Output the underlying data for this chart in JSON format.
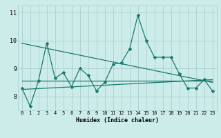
{
  "xlabel": "Humidex (Indice chaleur)",
  "bg_color": "#ccecea",
  "grid_color": "#b0d4d2",
  "line_color": "#1a7a6e",
  "xlim": [
    -0.5,
    23.5
  ],
  "ylim": [
    7.5,
    11.25
  ],
  "yticks": [
    8,
    9,
    10,
    11
  ],
  "xticks": [
    0,
    1,
    2,
    3,
    4,
    5,
    6,
    7,
    8,
    9,
    10,
    11,
    12,
    13,
    14,
    15,
    16,
    17,
    18,
    19,
    20,
    21,
    22,
    23
  ],
  "main_x": [
    0,
    1,
    2,
    3,
    4,
    5,
    6,
    7,
    8,
    9,
    10,
    11,
    12,
    13,
    14,
    15,
    16,
    17,
    18,
    19,
    20,
    21,
    22,
    23
  ],
  "main_y": [
    8.3,
    7.65,
    8.55,
    9.9,
    8.65,
    8.85,
    8.35,
    9.0,
    8.75,
    8.2,
    8.5,
    9.15,
    9.2,
    9.7,
    10.9,
    10.0,
    9.4,
    9.4,
    9.4,
    8.8,
    8.3,
    8.3,
    8.6,
    8.2
  ],
  "trend1_x": [
    0,
    23
  ],
  "trend1_y": [
    8.25,
    8.6
  ],
  "trend2_x": [
    0,
    23
  ],
  "trend2_y": [
    9.9,
    8.5
  ],
  "trend3_x": [
    0,
    23
  ],
  "trend3_y": [
    8.55,
    8.55
  ],
  "xlabel_fontsize": 6,
  "tick_fontsize": 5,
  "ytick_fontsize": 6,
  "marker_size": 3
}
